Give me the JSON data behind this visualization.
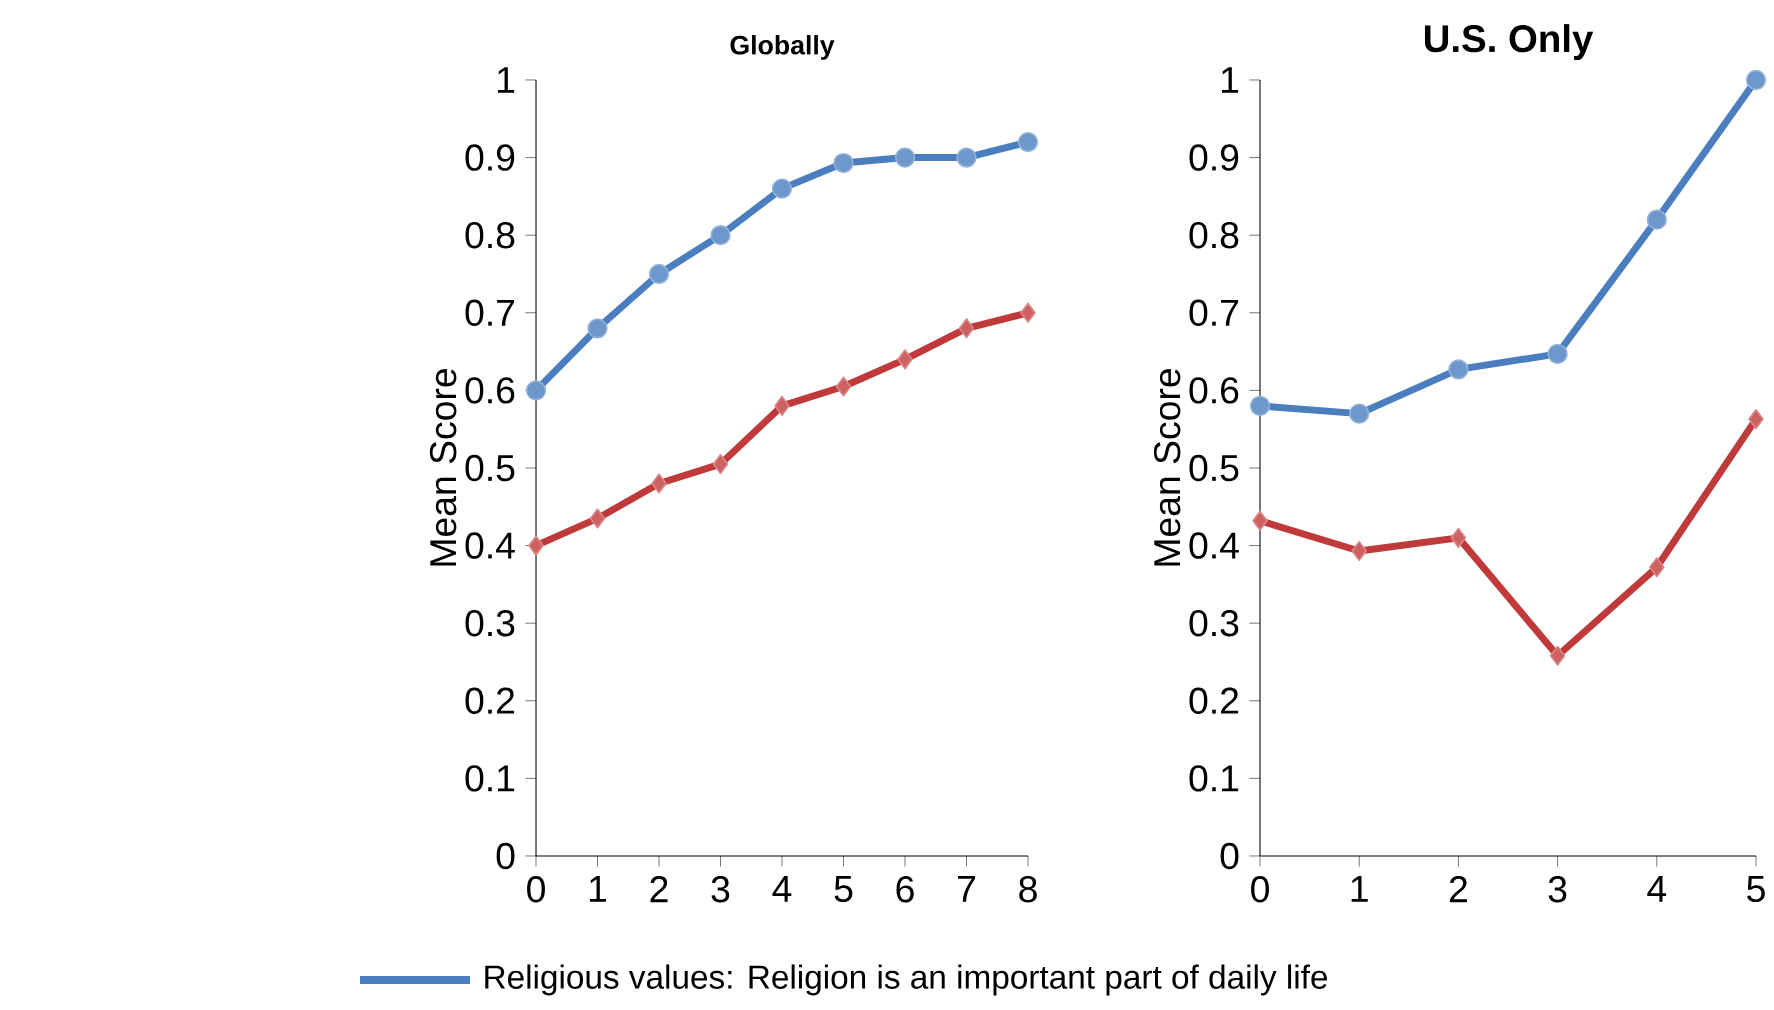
{
  "chart_data": [
    {
      "type": "line",
      "title": "Globally",
      "ylabel": "Mean Score",
      "x": [
        0,
        1,
        2,
        3,
        4,
        5,
        6,
        7,
        8
      ],
      "series": [
        {
          "name": "Religious values: Religion is an important part of daily life",
          "color": "#4a7ebf",
          "marker": "circle",
          "values": [
            0.6,
            0.68,
            0.75,
            0.8,
            0.86,
            0.893,
            0.9,
            0.9,
            0.92
          ]
        },
        {
          "color": "#c0393b",
          "marker": "diamond",
          "values": [
            0.4,
            0.435,
            0.48,
            0.505,
            0.58,
            0.605,
            0.64,
            0.68,
            0.7
          ]
        }
      ],
      "xlim": [
        0,
        8
      ],
      "xticks": [
        0,
        1,
        2,
        3,
        4,
        5,
        6,
        7,
        8
      ],
      "ylim": [
        0,
        1
      ],
      "yticks": [
        0,
        0.1,
        0.2,
        0.3,
        0.4,
        0.5,
        0.6,
        0.7,
        0.8,
        0.9,
        1
      ],
      "grid": false,
      "legend": "bottom"
    },
    {
      "type": "line",
      "title": "U.S. Only",
      "ylabel": "Mean Score",
      "x": [
        0,
        1,
        2,
        3,
        4,
        5
      ],
      "series": [
        {
          "color": "#4a7ebf",
          "marker": "circle",
          "values": [
            0.58,
            0.57,
            0.627,
            0.647,
            0.82,
            1.0
          ]
        },
        {
          "color": "#c0393b",
          "marker": "diamond",
          "values": [
            0.432,
            0.393,
            0.41,
            0.258,
            0.372,
            0.563
          ]
        }
      ],
      "xlim": [
        0,
        5
      ],
      "xticks": [
        0,
        1,
        2,
        3,
        4,
        5
      ],
      "ylim": [
        0,
        1
      ],
      "yticks": [
        0,
        0.1,
        0.2,
        0.3,
        0.4,
        0.5,
        0.6,
        0.7,
        0.8,
        0.9,
        1
      ],
      "grid": false
    }
  ]
}
